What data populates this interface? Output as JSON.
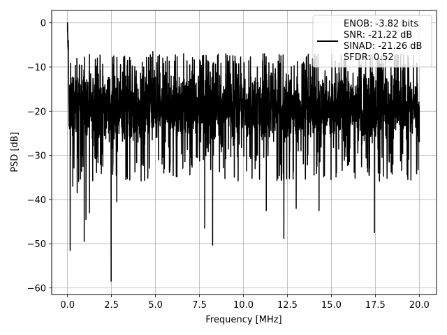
{
  "chart_data": {
    "type": "line",
    "xlabel": "Frequency [MHz]",
    "ylabel": "PSD [dB]",
    "xlim": [
      -0.9,
      20.98
    ],
    "ylim": [
      -61.5,
      2.8
    ],
    "xticks": [
      0.0,
      2.5,
      5.0,
      7.5,
      10.0,
      12.5,
      15.0,
      17.5,
      20.0
    ],
    "xtick_labels": [
      "0.0",
      "2.5",
      "5.0",
      "7.5",
      "10.0",
      "12.5",
      "15.0",
      "17.5",
      "20.0"
    ],
    "yticks": [
      0,
      -10,
      -20,
      -30,
      -40,
      -50,
      -60
    ],
    "ytick_labels": [
      "0",
      "−10",
      "−20",
      "−30",
      "−40",
      "−50",
      "−60"
    ],
    "grid": true,
    "legend_position": "top-right",
    "series": [
      {
        "legend_lines": [
          "ENOB: -3.82 bits",
          "SNR: -21.22 dB",
          "SINAD: -21.26 dB",
          "SFDR: 0.52"
        ],
        "color": "#000000",
        "f_range_mhz": [
          0,
          20
        ],
        "peak": {
          "x": 0.0,
          "y": 0.0
        },
        "noise_band_db": [
          -28,
          -10
        ],
        "notable_points": [
          {
            "x": 0.05,
            "y": -4.0
          },
          {
            "x": 0.1,
            "y": -18.5
          },
          {
            "x": 0.15,
            "y": -51.5
          },
          {
            "x": 0.2,
            "y": -12.5
          },
          {
            "x": 0.3,
            "y": -37.0
          },
          {
            "x": 0.55,
            "y": -38.5
          },
          {
            "x": 0.95,
            "y": -49.5
          },
          {
            "x": 1.05,
            "y": -44.5
          },
          {
            "x": 1.25,
            "y": -43.0
          },
          {
            "x": 2.48,
            "y": -58.5
          },
          {
            "x": 2.8,
            "y": -40.5
          },
          {
            "x": 4.85,
            "y": -6.5
          },
          {
            "x": 6.6,
            "y": -7.0
          },
          {
            "x": 7.8,
            "y": -46.5
          },
          {
            "x": 8.25,
            "y": -50.3
          },
          {
            "x": 9.0,
            "y": -7.0
          },
          {
            "x": 11.2,
            "y": -7.0
          },
          {
            "x": 11.3,
            "y": -42.5
          },
          {
            "x": 12.3,
            "y": -48.8
          },
          {
            "x": 13.0,
            "y": -42.0
          },
          {
            "x": 14.3,
            "y": -42.5
          },
          {
            "x": 17.45,
            "y": -47.5
          },
          {
            "x": 19.35,
            "y": -35.5
          },
          {
            "x": 20.0,
            "y": -27.0
          }
        ]
      }
    ]
  }
}
